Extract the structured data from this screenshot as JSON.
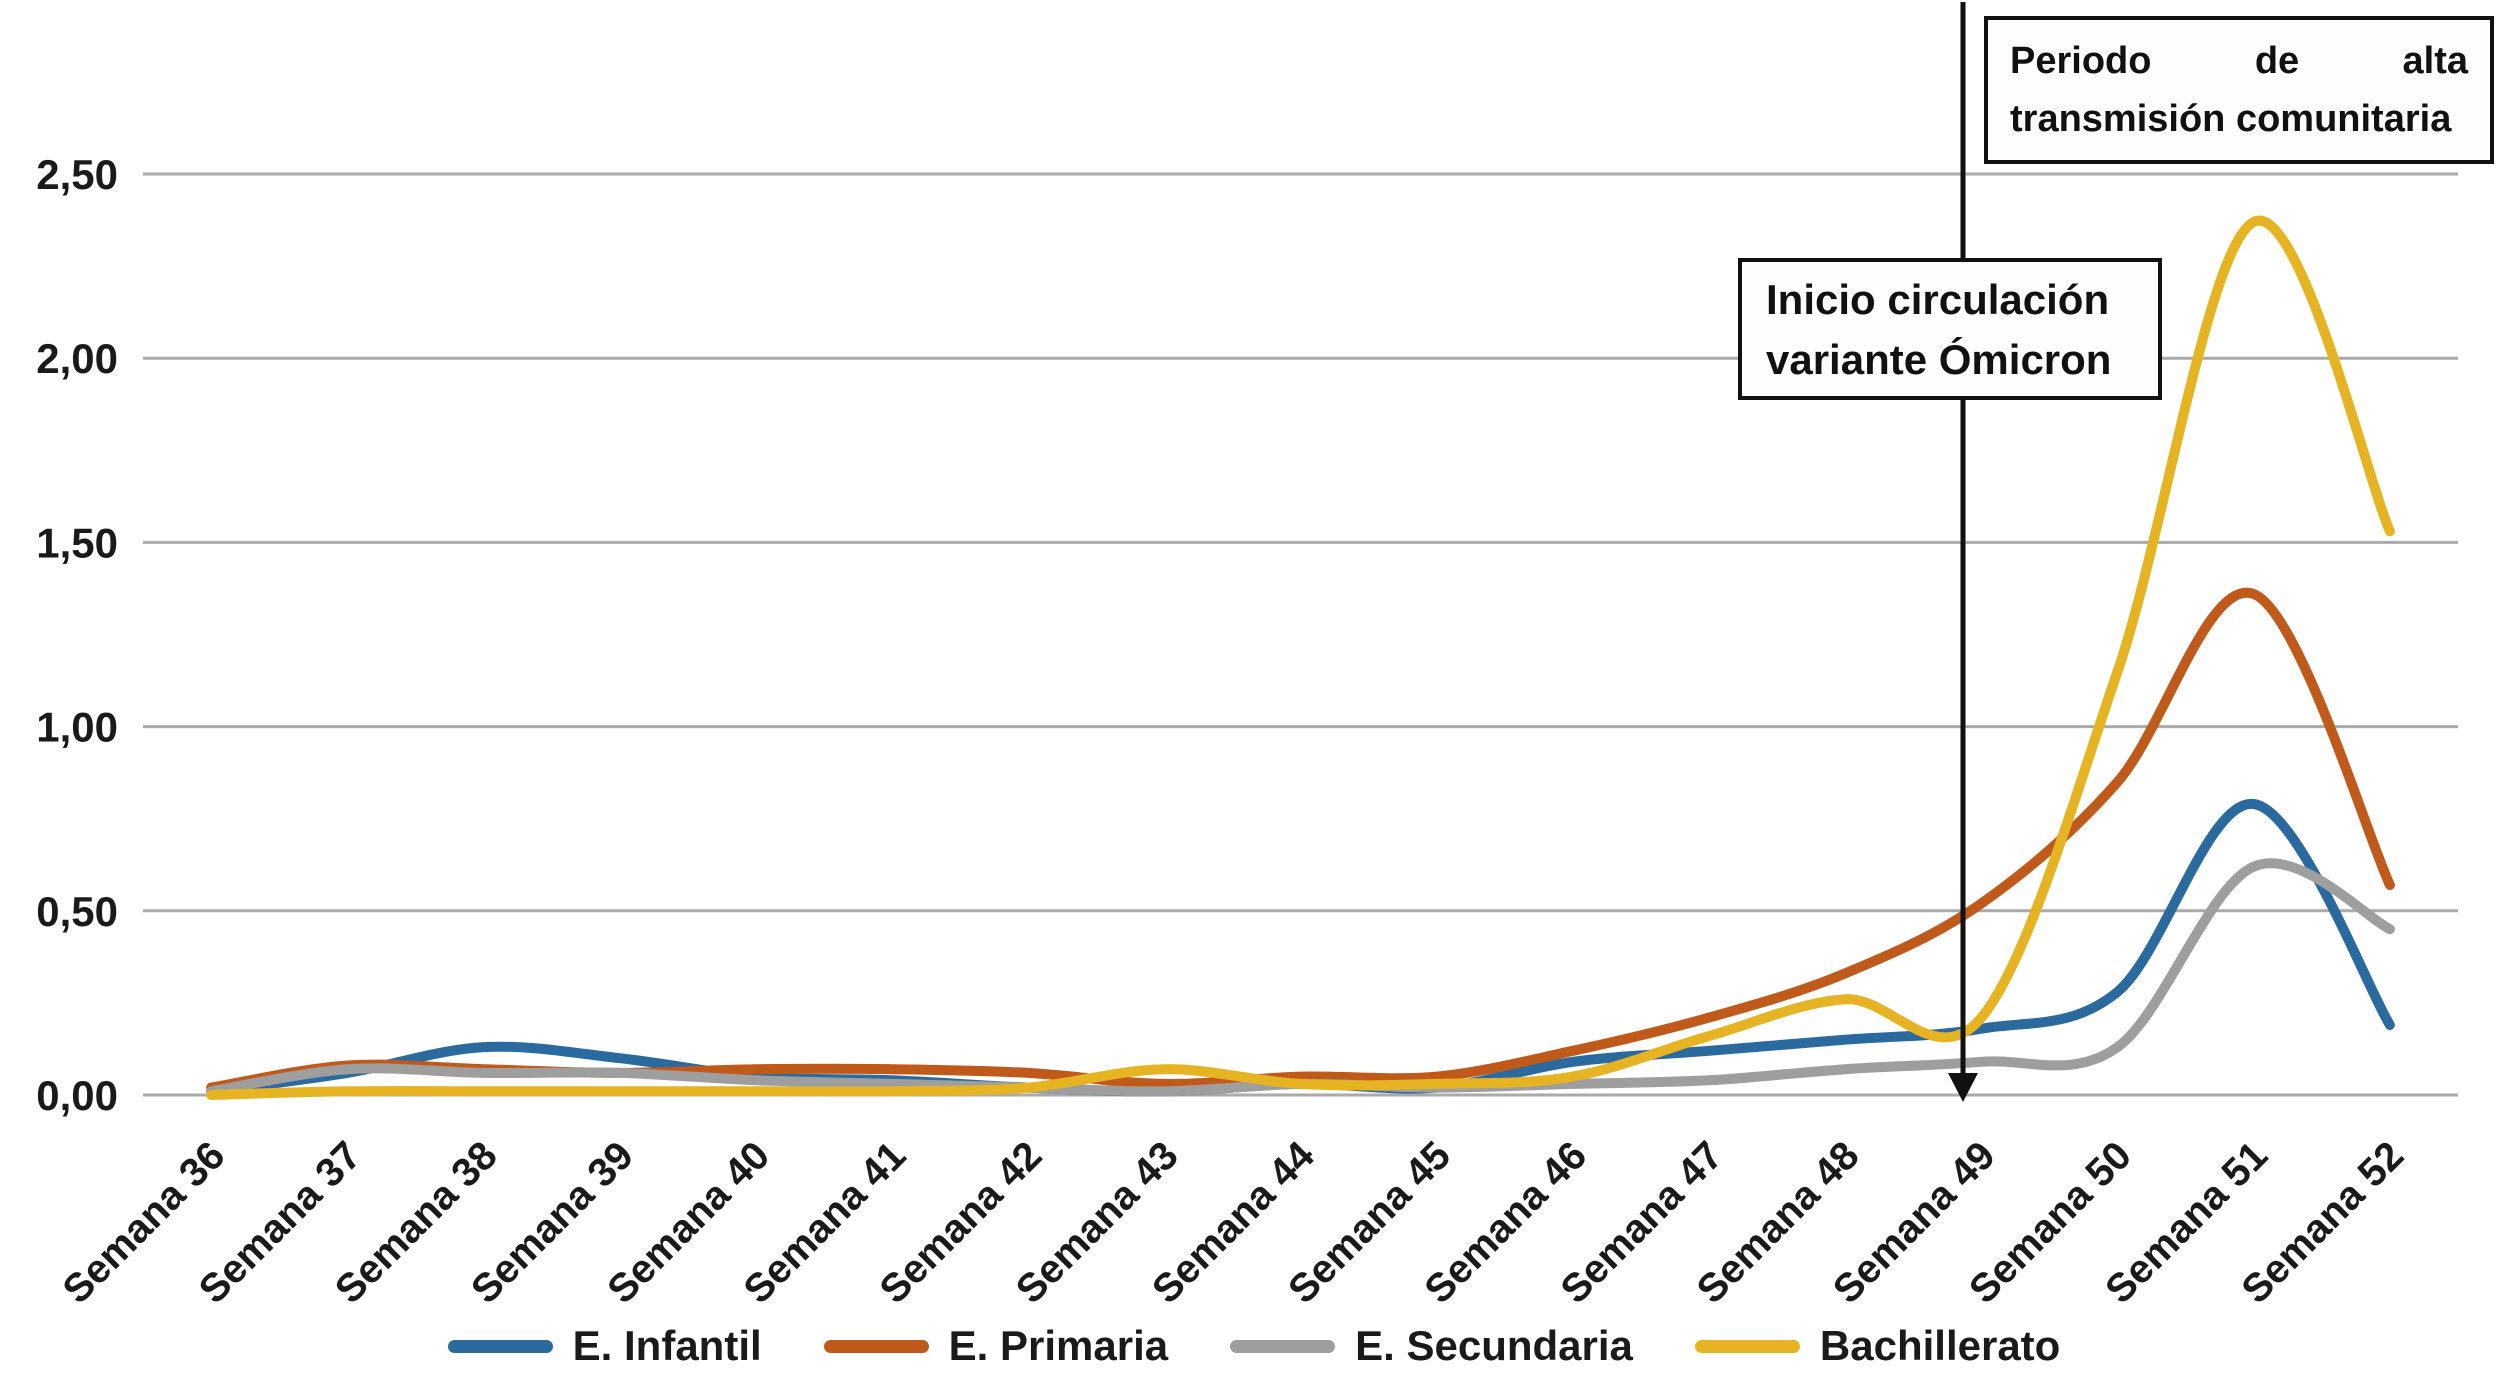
{
  "chart_data": {
    "type": "line",
    "title": "",
    "categories": [
      "Semana 36",
      "Semana 37",
      "Semana 38",
      "Semana 39",
      "Semana 40",
      "Semana 41",
      "Semana 42",
      "Semana 43",
      "Semana 44",
      "Semana 45",
      "Semana 46",
      "Semana 47",
      "Semana 48",
      "Semana 49",
      "Semana 50",
      "Semana 51",
      "Semana 52"
    ],
    "series": [
      {
        "name": "E. Infantil",
        "color": "#2b6a9f",
        "values": [
          0.01,
          0.06,
          0.13,
          0.1,
          0.05,
          0.04,
          0.02,
          0.01,
          0.03,
          0.02,
          0.09,
          0.12,
          0.15,
          0.18,
          0.28,
          0.79,
          0.19
        ]
      },
      {
        "name": "E. Primaria",
        "color": "#c05a1a",
        "values": [
          0.02,
          0.08,
          0.07,
          0.06,
          0.07,
          0.07,
          0.06,
          0.03,
          0.05,
          0.05,
          0.12,
          0.21,
          0.33,
          0.52,
          0.85,
          1.36,
          0.57
        ]
      },
      {
        "name": "E. Secundaria",
        "color": "#9e9e9e",
        "values": [
          0.01,
          0.07,
          0.06,
          0.06,
          0.04,
          0.03,
          0.02,
          0.01,
          0.03,
          0.02,
          0.03,
          0.04,
          0.07,
          0.09,
          0.13,
          0.62,
          0.45
        ]
      },
      {
        "name": "Bachillerato",
        "color": "#e6b323",
        "values": [
          0.0,
          0.01,
          0.01,
          0.01,
          0.01,
          0.01,
          0.02,
          0.07,
          0.03,
          0.03,
          0.05,
          0.16,
          0.26,
          0.21,
          1.15,
          2.37,
          1.53
        ]
      }
    ],
    "y_axis": {
      "min": 0,
      "max": 2.5,
      "step": 0.5,
      "tick_labels": [
        "0,00",
        "0,50",
        "1,00",
        "1,50",
        "2,00",
        "2,50"
      ]
    },
    "x_axis": {
      "label_rotation_deg": -45
    },
    "grid": true,
    "legend_position": "bottom",
    "gridline_color": "#aaaaaa",
    "marker_line_color": "#111111"
  },
  "annotations": {
    "omicron_box": {
      "line1": "Inicio circulación",
      "line2": "variante Ómicron",
      "marker_week": "Semana 49"
    },
    "period_box": {
      "line1": "Periodo de alta",
      "line2": "transmisión comunitaria"
    }
  }
}
